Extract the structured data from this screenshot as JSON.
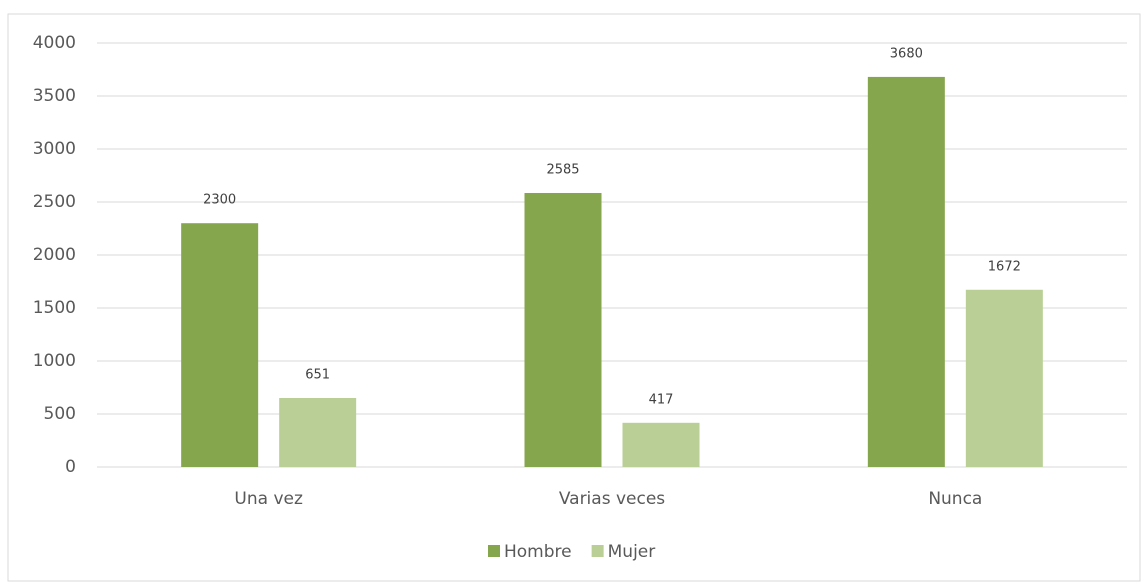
{
  "chart_data": {
    "type": "bar",
    "categories": [
      "Una vez",
      "Varias veces",
      "Nunca"
    ],
    "series": [
      {
        "name": "Hombre",
        "color": "#86a64e",
        "values": [
          2300,
          2585,
          3680
        ]
      },
      {
        "name": "Mujer",
        "color": "#b9cf96",
        "values": [
          651,
          417,
          1672
        ]
      }
    ],
    "ylim": [
      0,
      4000
    ],
    "yticks": [
      0,
      500,
      1000,
      1500,
      2000,
      2500,
      3000,
      3500,
      4000
    ],
    "grid": true,
    "legend": "bottom"
  }
}
